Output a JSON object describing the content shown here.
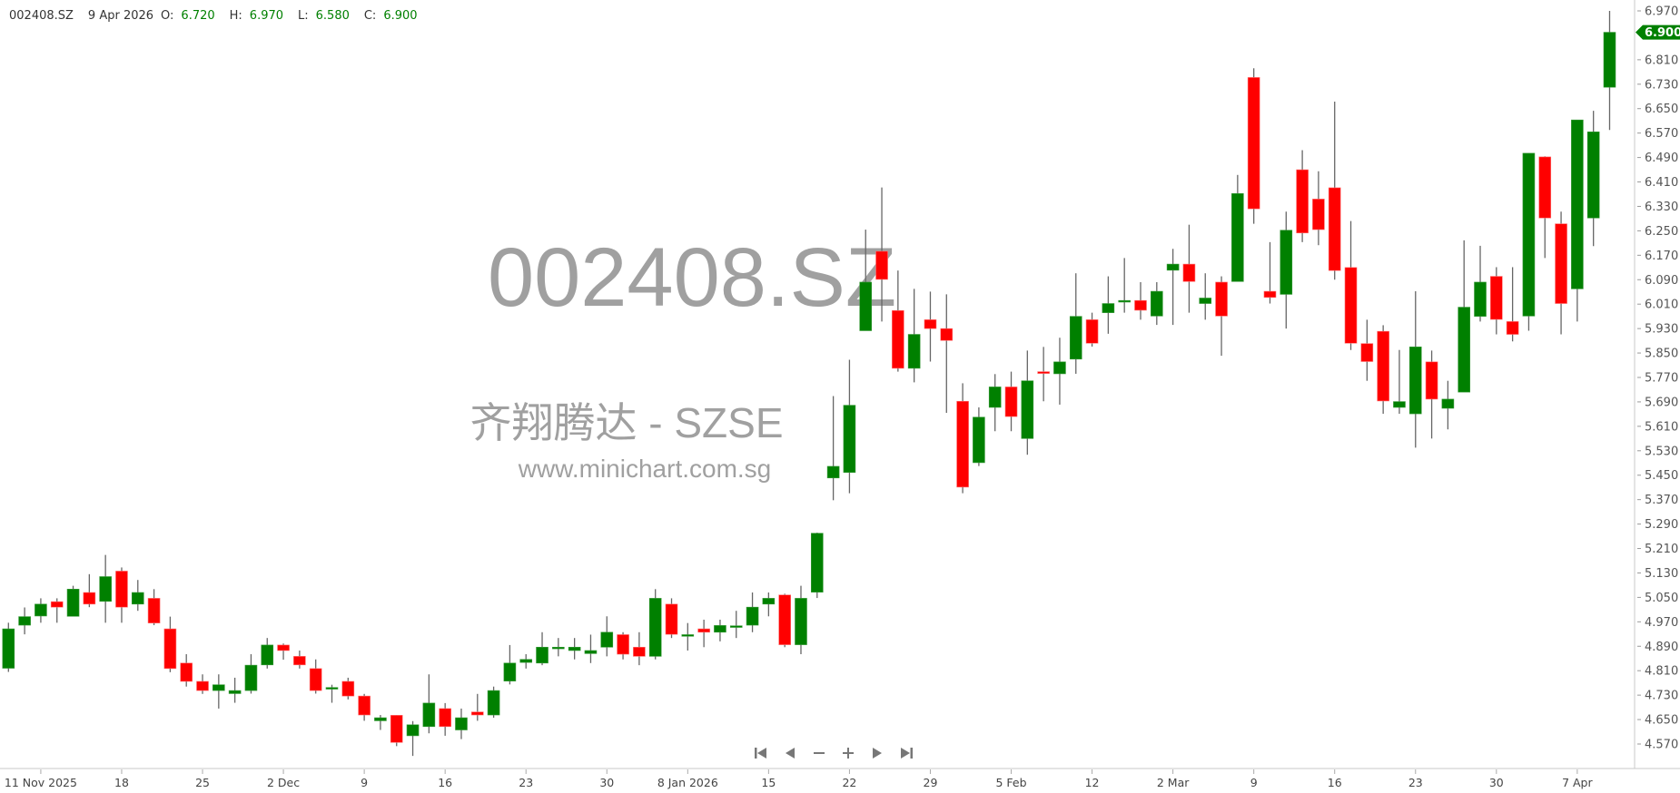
{
  "header": {
    "ticker": "002408.SZ",
    "date": "9 Apr 2026",
    "open_label": "O:",
    "open": "6.720",
    "high_label": "H:",
    "high": "6.970",
    "low_label": "L:",
    "low": "6.580",
    "close_label": "C:",
    "close": "6.900"
  },
  "watermark": {
    "symbol": "002408.SZ",
    "name": "齐翔腾达 - SZSE",
    "site": "www.minichart.com.sg"
  },
  "navigation": {
    "icons": [
      "skip-to-start-icon",
      "scroll-left-icon",
      "zoom-out-icon",
      "zoom-in-icon",
      "scroll-right-icon",
      "skip-to-end-icon"
    ]
  },
  "colors": {
    "up": "#008000",
    "down": "#ff0000",
    "wick": "#666666",
    "axis": "#c8c8c8",
    "badge": "#008000",
    "watermark": "#a0a0a0"
  },
  "chart_data": {
    "type": "candlestick",
    "title": "",
    "ylim": [
      4.57,
      6.97
    ],
    "y_ticks": [
      "4.570",
      "4.650",
      "4.730",
      "4.810",
      "4.890",
      "4.970",
      "5.050",
      "5.130",
      "5.210",
      "5.290",
      "5.370",
      "5.450",
      "5.530",
      "5.610",
      "5.690",
      "5.770",
      "5.850",
      "5.930",
      "6.010",
      "6.090",
      "6.170",
      "6.250",
      "6.330",
      "6.410",
      "6.490",
      "6.570",
      "6.650",
      "6.730",
      "6.810",
      "6.970"
    ],
    "last_price_label": "6.900",
    "last_price": 6.9,
    "x_ticks": [
      {
        "index": 2,
        "label": "11 Nov 2025"
      },
      {
        "index": 7,
        "label": "18"
      },
      {
        "index": 12,
        "label": "25"
      },
      {
        "index": 17,
        "label": "2 Dec"
      },
      {
        "index": 22,
        "label": "9"
      },
      {
        "index": 27,
        "label": "16"
      },
      {
        "index": 32,
        "label": "23"
      },
      {
        "index": 37,
        "label": "30"
      },
      {
        "index": 42,
        "label": "8 Jan 2026"
      },
      {
        "index": 47,
        "label": "15"
      },
      {
        "index": 52,
        "label": "22"
      },
      {
        "index": 57,
        "label": "29"
      },
      {
        "index": 62,
        "label": "5 Feb"
      },
      {
        "index": 67,
        "label": "12"
      },
      {
        "index": 72,
        "label": "2 Mar"
      },
      {
        "index": 77,
        "label": "9"
      },
      {
        "index": 82,
        "label": "16"
      },
      {
        "index": 87,
        "label": "23"
      },
      {
        "index": 92,
        "label": "30"
      },
      {
        "index": 97,
        "label": "7 Apr"
      }
    ],
    "dates": [
      "2025-11-07",
      "2025-11-10",
      "2025-11-11",
      "2025-11-12",
      "2025-11-13",
      "2025-11-14",
      "2025-11-17",
      "2025-11-18",
      "2025-11-19",
      "2025-11-20",
      "2025-11-21",
      "2025-11-24",
      "2025-11-25",
      "2025-11-26",
      "2025-11-27",
      "2025-11-28",
      "2025-12-01",
      "2025-12-02",
      "2025-12-03",
      "2025-12-04",
      "2025-12-05",
      "2025-12-08",
      "2025-12-09",
      "2025-12-10",
      "2025-12-11",
      "2025-12-12",
      "2025-12-15",
      "2025-12-16",
      "2025-12-17",
      "2025-12-18",
      "2025-12-19",
      "2025-12-22",
      "2025-12-23",
      "2025-12-24",
      "2025-12-25",
      "2025-12-26",
      "2025-12-29",
      "2025-12-30",
      "2025-12-31",
      "2026-01-05",
      "2026-01-06",
      "2026-01-07",
      "2026-01-08",
      "2026-01-09",
      "2026-01-12",
      "2026-01-13",
      "2026-01-14",
      "2026-01-15",
      "2026-01-16",
      "2026-01-19",
      "2026-01-20",
      "2026-01-21",
      "2026-01-22",
      "2026-01-23",
      "2026-01-26",
      "2026-01-27",
      "2026-01-28",
      "2026-01-29",
      "2026-01-30",
      "2026-02-02",
      "2026-02-03",
      "2026-02-04",
      "2026-02-05",
      "2026-02-06",
      "2026-02-09",
      "2026-02-10",
      "2026-02-11",
      "2026-02-12",
      "2026-02-13",
      "2026-02-25",
      "2026-02-26",
      "2026-02-27",
      "2026-03-02",
      "2026-03-03",
      "2026-03-04",
      "2026-03-05",
      "2026-03-06",
      "2026-03-09",
      "2026-03-10",
      "2026-03-11",
      "2026-03-12",
      "2026-03-13",
      "2026-03-16",
      "2026-03-17",
      "2026-03-18",
      "2026-03-19",
      "2026-03-20",
      "2026-03-23",
      "2026-03-24",
      "2026-03-25",
      "2026-03-26",
      "2026-03-27",
      "2026-03-30",
      "2026-03-31",
      "2026-04-01",
      "2026-04-02",
      "2026-04-03",
      "2026-04-07",
      "2026-04-08",
      "2026-04-09"
    ],
    "ohlc": [
      [
        4.818,
        4.967,
        4.806,
        4.947
      ],
      [
        4.959,
        5.017,
        4.929,
        4.987
      ],
      [
        4.989,
        5.047,
        4.967,
        5.028
      ],
      [
        5.036,
        5.047,
        4.967,
        5.018
      ],
      [
        4.988,
        5.088,
        4.988,
        5.077
      ],
      [
        5.066,
        5.126,
        5.018,
        5.028
      ],
      [
        5.037,
        5.189,
        4.967,
        5.118
      ],
      [
        5.136,
        5.148,
        4.967,
        5.018
      ],
      [
        5.028,
        5.107,
        5.006,
        5.066
      ],
      [
        5.047,
        5.077,
        4.959,
        4.966
      ],
      [
        4.947,
        4.987,
        4.805,
        4.817
      ],
      [
        4.835,
        4.864,
        4.758,
        4.775
      ],
      [
        4.775,
        4.798,
        4.734,
        4.745
      ],
      [
        4.745,
        4.798,
        4.686,
        4.764
      ],
      [
        4.735,
        4.787,
        4.705,
        4.745
      ],
      [
        4.745,
        4.864,
        4.735,
        4.828
      ],
      [
        4.829,
        4.917,
        4.817,
        4.894
      ],
      [
        4.894,
        4.899,
        4.846,
        4.876
      ],
      [
        4.857,
        4.876,
        4.817,
        4.829
      ],
      [
        4.817,
        4.847,
        4.735,
        4.745
      ],
      [
        4.755,
        4.764,
        4.705,
        4.755
      ],
      [
        4.775,
        4.787,
        4.716,
        4.727
      ],
      [
        4.727,
        4.734,
        4.646,
        4.665
      ],
      [
        4.646,
        4.665,
        4.616,
        4.656
      ],
      [
        4.664,
        4.665,
        4.563,
        4.575
      ],
      [
        4.597,
        4.645,
        4.531,
        4.633
      ],
      [
        4.627,
        4.798,
        4.605,
        4.704
      ],
      [
        4.686,
        4.704,
        4.597,
        4.627
      ],
      [
        4.616,
        4.686,
        4.586,
        4.656
      ],
      [
        4.675,
        4.734,
        4.646,
        4.665
      ],
      [
        4.665,
        4.758,
        4.656,
        4.745
      ],
      [
        4.776,
        4.894,
        4.765,
        4.835
      ],
      [
        4.837,
        4.864,
        4.817,
        4.847
      ],
      [
        4.835,
        4.936,
        4.828,
        4.887
      ],
      [
        4.886,
        4.917,
        4.857,
        4.887
      ],
      [
        4.876,
        4.917,
        4.847,
        4.887
      ],
      [
        4.866,
        4.928,
        4.835,
        4.876
      ],
      [
        4.887,
        4.988,
        4.857,
        4.936
      ],
      [
        4.928,
        4.936,
        4.847,
        4.864
      ],
      [
        4.887,
        4.936,
        4.828,
        4.857
      ],
      [
        4.857,
        5.077,
        4.847,
        5.047
      ],
      [
        5.028,
        5.047,
        4.917,
        4.929
      ],
      [
        4.927,
        4.966,
        4.876,
        4.928
      ],
      [
        4.947,
        4.977,
        4.887,
        4.936
      ],
      [
        4.936,
        4.977,
        4.906,
        4.958
      ],
      [
        4.956,
        5.006,
        4.917,
        4.957
      ],
      [
        4.959,
        5.066,
        4.936,
        5.018
      ],
      [
        5.028,
        5.066,
        4.988,
        5.047
      ],
      [
        5.058,
        5.062,
        4.887,
        4.895
      ],
      [
        4.895,
        5.088,
        4.864,
        5.047
      ],
      [
        5.067,
        5.262,
        5.048,
        5.26
      ],
      [
        5.441,
        5.709,
        5.368,
        5.479
      ],
      [
        5.459,
        5.828,
        5.391,
        5.679
      ],
      [
        5.923,
        6.254,
        5.923,
        6.082
      ],
      [
        6.183,
        6.392,
        5.953,
        6.091
      ],
      [
        5.989,
        6.12,
        5.789,
        5.8
      ],
      [
        5.8,
        6.06,
        5.754,
        5.911
      ],
      [
        5.959,
        6.051,
        5.822,
        5.93
      ],
      [
        5.93,
        6.042,
        5.654,
        5.891
      ],
      [
        5.692,
        5.751,
        5.391,
        5.411
      ],
      [
        5.491,
        5.672,
        5.48,
        5.64
      ],
      [
        5.672,
        5.781,
        5.594,
        5.739
      ],
      [
        5.739,
        5.789,
        5.594,
        5.642
      ],
      [
        5.57,
        5.858,
        5.517,
        5.759
      ],
      [
        5.789,
        5.87,
        5.692,
        5.783
      ],
      [
        5.782,
        5.9,
        5.681,
        5.821
      ],
      [
        5.83,
        6.111,
        5.782,
        5.97
      ],
      [
        5.959,
        5.982,
        5.871,
        5.882
      ],
      [
        5.982,
        6.101,
        5.913,
        6.012
      ],
      [
        6.021,
        6.161,
        5.982,
        6.022
      ],
      [
        6.022,
        6.082,
        5.959,
        5.99
      ],
      [
        5.971,
        6.082,
        5.942,
        6.052
      ],
      [
        6.121,
        6.191,
        5.942,
        6.141
      ],
      [
        6.141,
        6.27,
        5.982,
        6.084
      ],
      [
        6.012,
        6.111,
        5.959,
        6.03
      ],
      [
        6.082,
        6.101,
        5.841,
        5.971
      ],
      [
        6.084,
        6.433,
        6.084,
        6.372
      ],
      [
        6.752,
        6.782,
        6.273,
        6.322
      ],
      [
        6.052,
        6.213,
        6.012,
        6.032
      ],
      [
        6.042,
        6.313,
        5.93,
        6.252
      ],
      [
        6.45,
        6.514,
        6.213,
        6.243
      ],
      [
        6.354,
        6.445,
        6.203,
        6.254
      ],
      [
        6.391,
        6.673,
        6.09,
        6.12
      ],
      [
        6.13,
        6.282,
        5.86,
        5.882
      ],
      [
        5.881,
        5.959,
        5.759,
        5.822
      ],
      [
        5.921,
        5.941,
        5.651,
        5.693
      ],
      [
        5.672,
        5.86,
        5.651,
        5.691
      ],
      [
        5.651,
        6.052,
        5.54,
        5.87
      ],
      [
        5.821,
        5.858,
        5.57,
        5.699
      ],
      [
        5.669,
        5.759,
        5.6,
        5.699
      ],
      [
        5.722,
        6.219,
        5.722,
        6.0
      ],
      [
        5.97,
        6.201,
        5.953,
        6.082
      ],
      [
        6.101,
        6.131,
        5.911,
        5.96
      ],
      [
        5.953,
        6.131,
        5.888,
        5.911
      ],
      [
        5.971,
        6.504,
        5.923,
        6.504
      ],
      [
        6.492,
        6.494,
        6.161,
        6.292
      ],
      [
        6.273,
        6.313,
        5.911,
        6.012
      ],
      [
        6.06,
        6.613,
        5.953,
        6.613
      ],
      [
        6.292,
        6.643,
        6.2,
        6.574
      ],
      [
        6.72,
        6.97,
        6.58,
        6.9
      ]
    ]
  }
}
